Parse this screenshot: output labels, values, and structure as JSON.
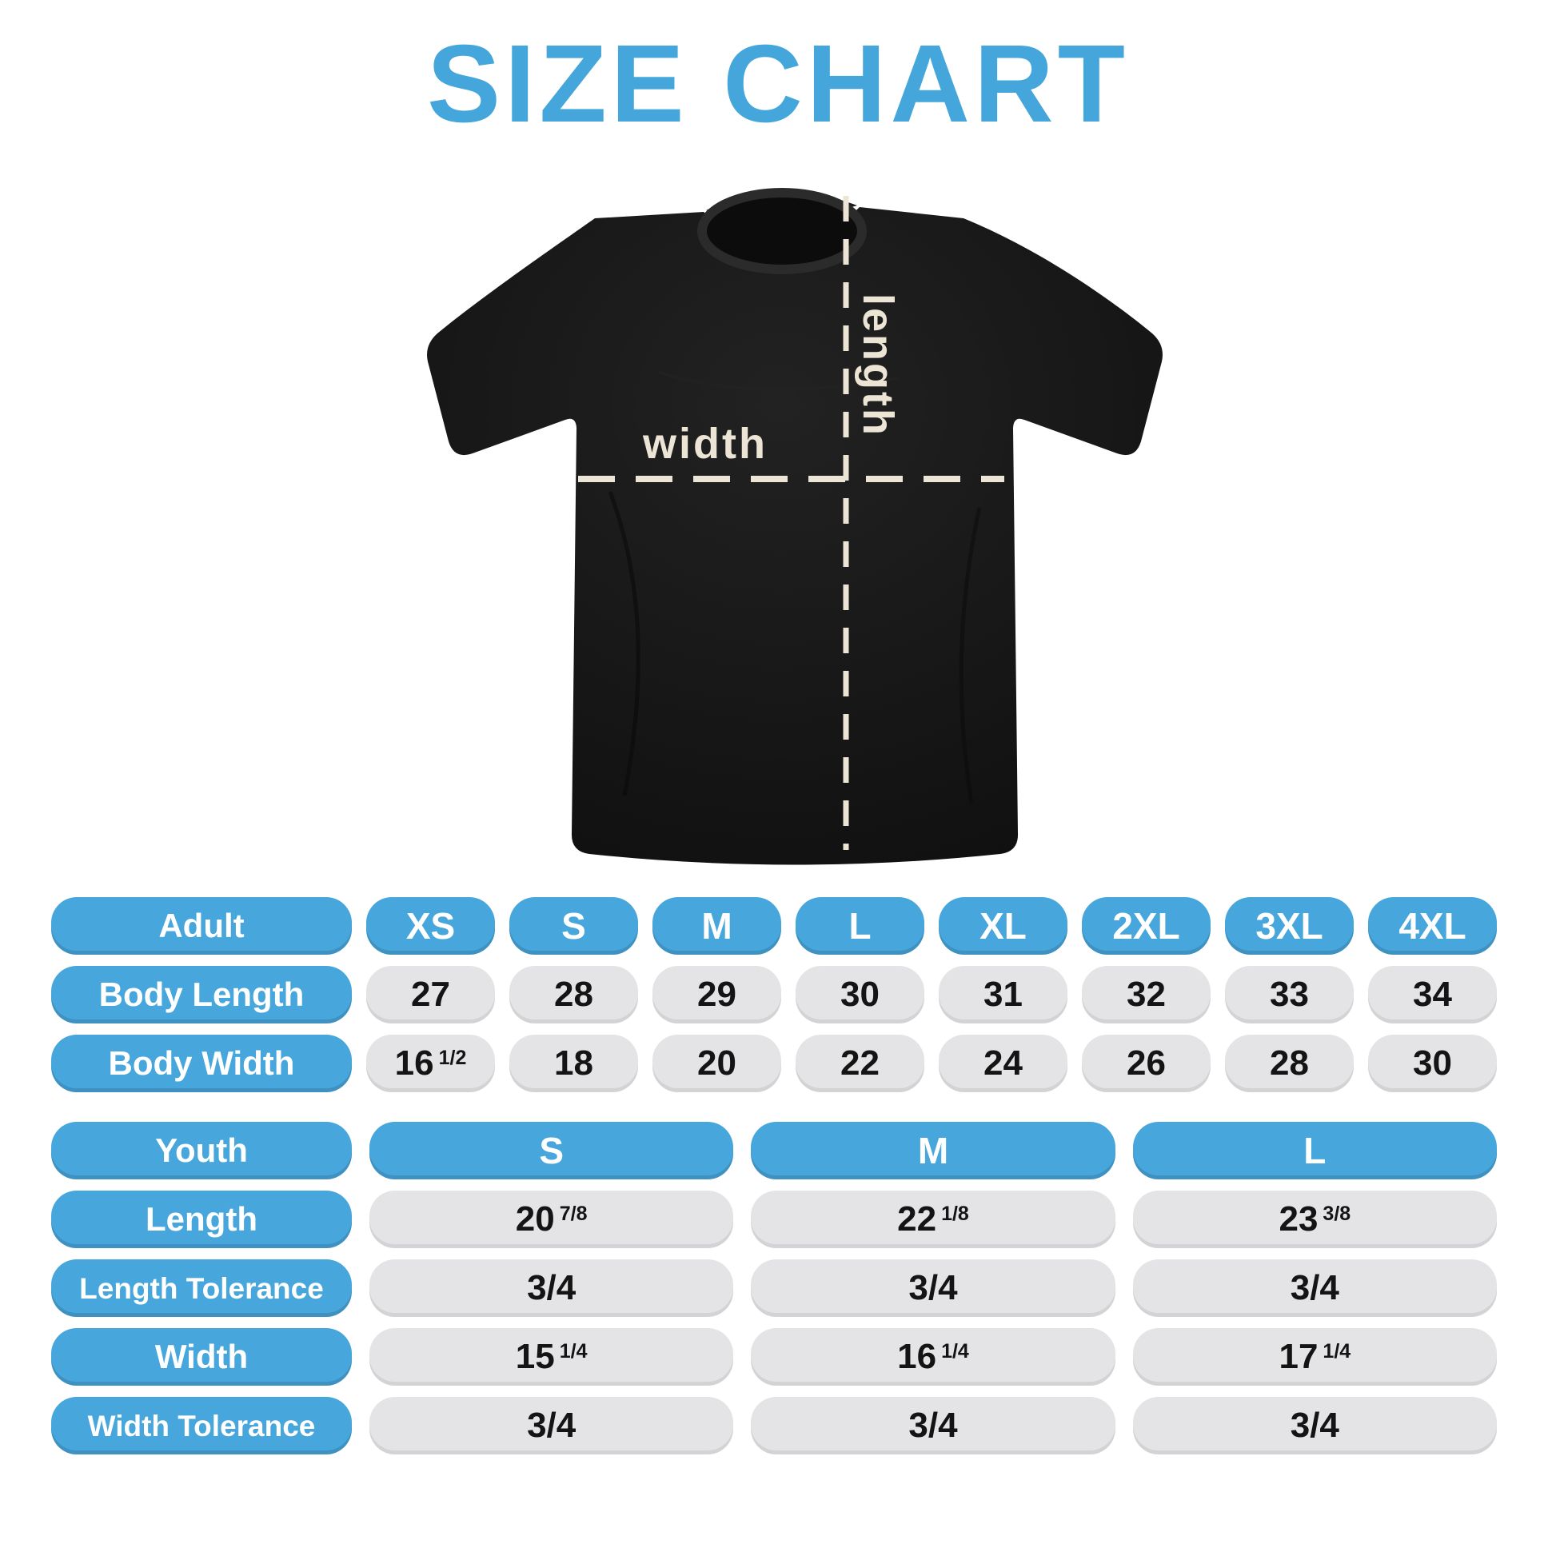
{
  "title": "SIZE CHART",
  "colors": {
    "accent_blue": "#47a6db",
    "cell_grey": "#e4e4e6",
    "number_black": "#141414",
    "shirt_black": "#161616",
    "measure_line_cream": "#ece5d6"
  },
  "shirt": {
    "width_label": "width",
    "length_label": "length"
  },
  "chart_data": [
    {
      "type": "table",
      "name": "adult",
      "header_label": "Adult",
      "size_headers": [
        "XS",
        "S",
        "M",
        "L",
        "XL",
        "2XL",
        "3XL",
        "4XL"
      ],
      "rows": [
        {
          "label": "Body Length",
          "values": [
            "27",
            "28",
            "29",
            "30",
            "31",
            "32",
            "33",
            "34"
          ]
        },
        {
          "label": "Body Width",
          "values": [
            "16 1/2",
            "18",
            "20",
            "22",
            "24",
            "26",
            "28",
            "30"
          ]
        }
      ]
    },
    {
      "type": "table",
      "name": "youth",
      "header_label": "Youth",
      "size_headers": [
        "S",
        "M",
        "L"
      ],
      "rows": [
        {
          "label": "Length",
          "values": [
            "20 7/8",
            "22 1/8",
            "23 3/8"
          ]
        },
        {
          "label": "Length Tolerance",
          "values": [
            "3/4",
            "3/4",
            "3/4"
          ]
        },
        {
          "label": "Width",
          "values": [
            "15 1/4",
            "16 1/4",
            "17 1/4"
          ]
        },
        {
          "label": "Width Tolerance",
          "values": [
            "3/4",
            "3/4",
            "3/4"
          ]
        }
      ]
    }
  ]
}
